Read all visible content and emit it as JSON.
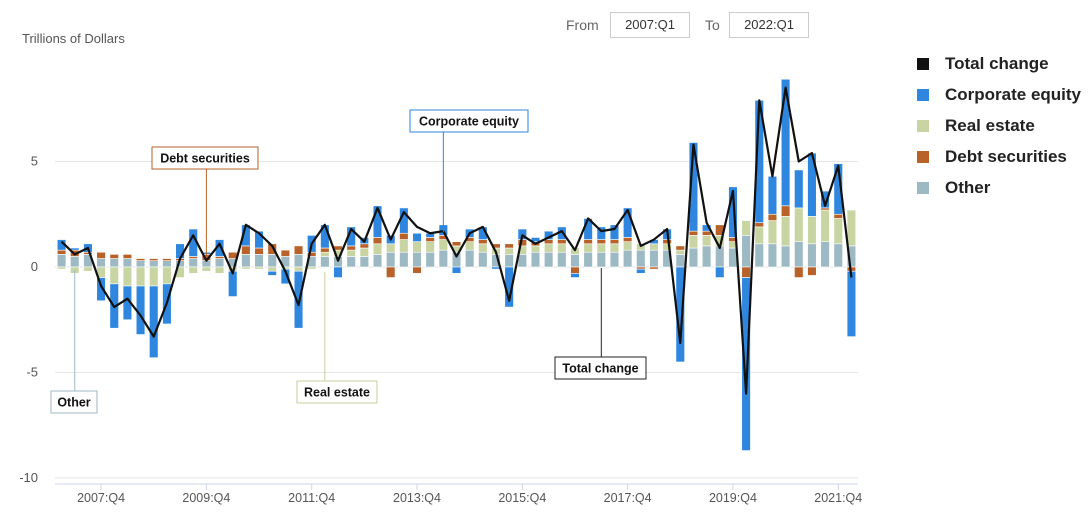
{
  "range": {
    "from_label": "From",
    "from_value": "2007:Q1",
    "to_label": "To",
    "to_value": "2022:Q1"
  },
  "colors": {
    "total": "#111111",
    "equity": "#2e86de",
    "real_estate": "#c8d5a3",
    "debt": "#b8622a",
    "other": "#9db9c4"
  },
  "chart_data": {
    "type": "bar",
    "stacked": true,
    "ylabel": "Trillions of Dollars",
    "ylim": [
      -10.5,
      10.5
    ],
    "yticks": [
      5,
      0,
      -5,
      -10
    ],
    "xticks": [
      "2007:Q4",
      "2009:Q4",
      "2011:Q4",
      "2013:Q4",
      "2015:Q4",
      "2017:Q4",
      "2019:Q4",
      "2021:Q4"
    ],
    "grid": true,
    "legend_position": "right",
    "categories": [
      "2007:Q1",
      "2007:Q2",
      "2007:Q3",
      "2007:Q4",
      "2008:Q1",
      "2008:Q2",
      "2008:Q3",
      "2008:Q4",
      "2009:Q1",
      "2009:Q2",
      "2009:Q3",
      "2009:Q4",
      "2010:Q1",
      "2010:Q2",
      "2010:Q3",
      "2010:Q4",
      "2011:Q1",
      "2011:Q2",
      "2011:Q3",
      "2011:Q4",
      "2012:Q1",
      "2012:Q2",
      "2012:Q3",
      "2012:Q4",
      "2013:Q1",
      "2013:Q2",
      "2013:Q3",
      "2013:Q4",
      "2014:Q1",
      "2014:Q2",
      "2014:Q3",
      "2014:Q4",
      "2015:Q1",
      "2015:Q2",
      "2015:Q3",
      "2015:Q4",
      "2016:Q1",
      "2016:Q2",
      "2016:Q3",
      "2016:Q4",
      "2017:Q1",
      "2017:Q2",
      "2017:Q3",
      "2017:Q4",
      "2018:Q1",
      "2018:Q2",
      "2018:Q3",
      "2018:Q4",
      "2019:Q1",
      "2019:Q2",
      "2019:Q3",
      "2019:Q4",
      "2020:Q1",
      "2020:Q2",
      "2020:Q3",
      "2020:Q4",
      "2021:Q1",
      "2021:Q2",
      "2021:Q3",
      "2021:Q4",
      "2022:Q1"
    ],
    "series": [
      {
        "name": "Total change",
        "key": "total",
        "kind": "line",
        "values": [
          1.2,
          0.6,
          0.9,
          -0.9,
          -1.9,
          -1.5,
          -2.3,
          -3.3,
          -1.7,
          0.4,
          1.5,
          0.3,
          1.1,
          -0.3,
          2.0,
          1.6,
          1.0,
          -0.2,
          -1.8,
          1.1,
          2.0,
          0.3,
          1.8,
          1.2,
          2.8,
          1.3,
          2.6,
          1.9,
          1.6,
          1.7,
          0.5,
          1.6,
          1.9,
          0.7,
          -1.6,
          1.5,
          1.1,
          1.4,
          1.7,
          0.8,
          2.3,
          1.7,
          1.8,
          2.7,
          1.0,
          1.3,
          1.8,
          -3.6,
          5.8,
          2.1,
          0.9,
          3.6,
          -6.0,
          7.9,
          4.3,
          8.5,
          5.0,
          5.4,
          2.9,
          4.8,
          -0.5
        ]
      },
      {
        "name": "Corporate equity",
        "key": "equity",
        "kind": "bar",
        "values": [
          0.5,
          0.1,
          0.4,
          -1.1,
          -2.1,
          -1.6,
          -2.3,
          -3.4,
          -1.9,
          0.7,
          1.3,
          0.1,
          0.8,
          -1.2,
          1.0,
          0.8,
          -0.2,
          -0.7,
          -2.7,
          0.8,
          1.1,
          -0.5,
          0.9,
          0.3,
          1.5,
          0.4,
          1.2,
          0.4,
          0.2,
          0.5,
          -0.3,
          0.4,
          0.6,
          -0.1,
          -1.9,
          0.5,
          0.2,
          0.4,
          0.6,
          -0.2,
          1.0,
          0.6,
          0.7,
          1.4,
          -0.2,
          0.2,
          0.5,
          -4.5,
          4.2,
          0.3,
          -0.5,
          2.4,
          -8.2,
          5.8,
          1.8,
          6.0,
          1.8,
          3.0,
          0.8,
          2.4,
          -3.1
        ]
      },
      {
        "name": "Real estate",
        "key": "real_estate",
        "kind": "bar",
        "values": [
          -0.1,
          -0.3,
          -0.2,
          -0.5,
          -0.8,
          -0.9,
          -0.9,
          -0.9,
          -0.8,
          -0.5,
          -0.3,
          -0.2,
          -0.3,
          -0.2,
          -0.1,
          -0.1,
          -0.2,
          -0.1,
          -0.2,
          -0.1,
          0.2,
          0.3,
          0.3,
          0.4,
          0.5,
          0.4,
          0.6,
          0.5,
          0.5,
          0.5,
          0.3,
          0.4,
          0.4,
          0.3,
          0.3,
          0.4,
          0.3,
          0.4,
          0.4,
          0.3,
          0.4,
          0.4,
          0.4,
          0.4,
          0.3,
          0.3,
          0.3,
          0.2,
          0.6,
          0.5,
          0.5,
          0.3,
          0.7,
          0.8,
          1.1,
          1.4,
          1.6,
          1.3,
          1.5,
          1.2,
          1.7
        ]
      },
      {
        "name": "Debt securities",
        "key": "debt",
        "kind": "bar",
        "values": [
          0.2,
          0.3,
          0.1,
          0.3,
          0.2,
          0.2,
          0.1,
          0.1,
          0.1,
          0.1,
          0.1,
          0.3,
          0.1,
          0.3,
          0.4,
          0.3,
          0.5,
          0.3,
          0.4,
          0.2,
          0.2,
          0.2,
          0.2,
          0.2,
          0.3,
          -0.5,
          0.3,
          -0.3,
          0.2,
          0.2,
          0.2,
          0.2,
          0.2,
          0.2,
          0.2,
          0.3,
          0.2,
          0.2,
          0.2,
          -0.3,
          0.2,
          0.2,
          0.2,
          0.2,
          -0.1,
          -0.1,
          0.2,
          0.2,
          0.2,
          0.2,
          0.5,
          0.2,
          -0.5,
          0.2,
          0.3,
          0.5,
          -0.5,
          -0.4,
          0.1,
          0.2,
          -0.2
        ]
      },
      {
        "name": "Other",
        "key": "other",
        "kind": "bar",
        "values": [
          0.6,
          0.5,
          0.6,
          0.4,
          0.4,
          0.4,
          0.3,
          0.3,
          0.3,
          0.3,
          0.4,
          0.3,
          0.4,
          0.4,
          0.6,
          0.6,
          0.6,
          0.5,
          0.6,
          0.5,
          0.5,
          0.5,
          0.5,
          0.5,
          0.6,
          0.7,
          0.7,
          0.7,
          0.7,
          0.8,
          0.7,
          0.8,
          0.7,
          0.6,
          0.6,
          0.6,
          0.7,
          0.7,
          0.7,
          0.6,
          0.7,
          0.7,
          0.7,
          0.8,
          0.8,
          0.8,
          0.8,
          0.6,
          0.9,
          1.0,
          1.0,
          0.9,
          1.5,
          1.1,
          1.1,
          1.0,
          1.2,
          1.1,
          1.2,
          1.1,
          1.0
        ]
      }
    ],
    "annotations": [
      {
        "text": "Debt securities",
        "series": "debt",
        "category": "2009:Q4"
      },
      {
        "text": "Corporate equity",
        "series": "equity",
        "category": "2014:Q2"
      },
      {
        "text": "Other",
        "series": "other",
        "category": "2007:Q2"
      },
      {
        "text": "Real estate",
        "series": "real_estate",
        "category": "2012:Q1"
      },
      {
        "text": "Total change",
        "series": "total",
        "category": "2017:Q2"
      }
    ]
  }
}
